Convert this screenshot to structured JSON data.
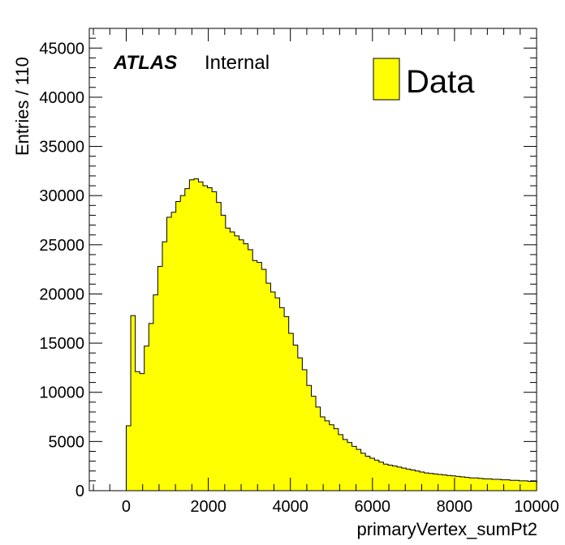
{
  "chart_data": {
    "type": "bar",
    "histogram": true,
    "xlabel": "primaryVertex_sumPt2",
    "ylabel": "Entries / 110",
    "xlim": [
      -900,
      10000
    ],
    "ylim": [
      0,
      47000
    ],
    "x_ticks": [
      0,
      2000,
      4000,
      6000,
      8000,
      10000
    ],
    "x_tick_labels": [
      "0",
      "2000",
      "4000",
      "6000",
      "8000",
      "10000"
    ],
    "y_ticks": [
      0,
      5000,
      10000,
      15000,
      20000,
      25000,
      30000,
      35000,
      40000,
      45000
    ],
    "y_tick_labels": [
      "0",
      "5000",
      "10000",
      "15000",
      "20000",
      "25000",
      "30000",
      "35000",
      "40000",
      "45000"
    ],
    "grid": false,
    "legend_position": "top-right",
    "annotation": {
      "experiment": "ATLAS",
      "status": "Internal"
    },
    "series": [
      {
        "name": "Data",
        "color": "#ffff00",
        "line_color": "#000000",
        "bin_width": 110,
        "first_bin_low": 0,
        "values": [
          6600,
          17800,
          12100,
          11900,
          14700,
          17000,
          19900,
          22800,
          25300,
          27800,
          28300,
          29400,
          30000,
          30700,
          31600,
          31700,
          31400,
          31000,
          30800,
          30400,
          29300,
          28000,
          26700,
          26300,
          25900,
          25500,
          25100,
          24500,
          23400,
          23200,
          22500,
          21100,
          20200,
          19600,
          18600,
          17700,
          16000,
          14800,
          13500,
          12300,
          10700,
          9600,
          8500,
          7500,
          7100,
          6700,
          6300,
          5700,
          5200,
          4900,
          4500,
          4200,
          3800,
          3500,
          3300,
          3100,
          2900,
          2700,
          2600,
          2500,
          2400,
          2300,
          2200,
          2100,
          2000,
          1900,
          1800,
          1750,
          1700,
          1650,
          1600,
          1550,
          1500,
          1450,
          1400,
          1350,
          1300,
          1300,
          1250,
          1200,
          1200,
          1150,
          1150,
          1100,
          1100,
          1050,
          1050,
          1000,
          1000,
          950,
          950,
          900
        ]
      }
    ]
  }
}
